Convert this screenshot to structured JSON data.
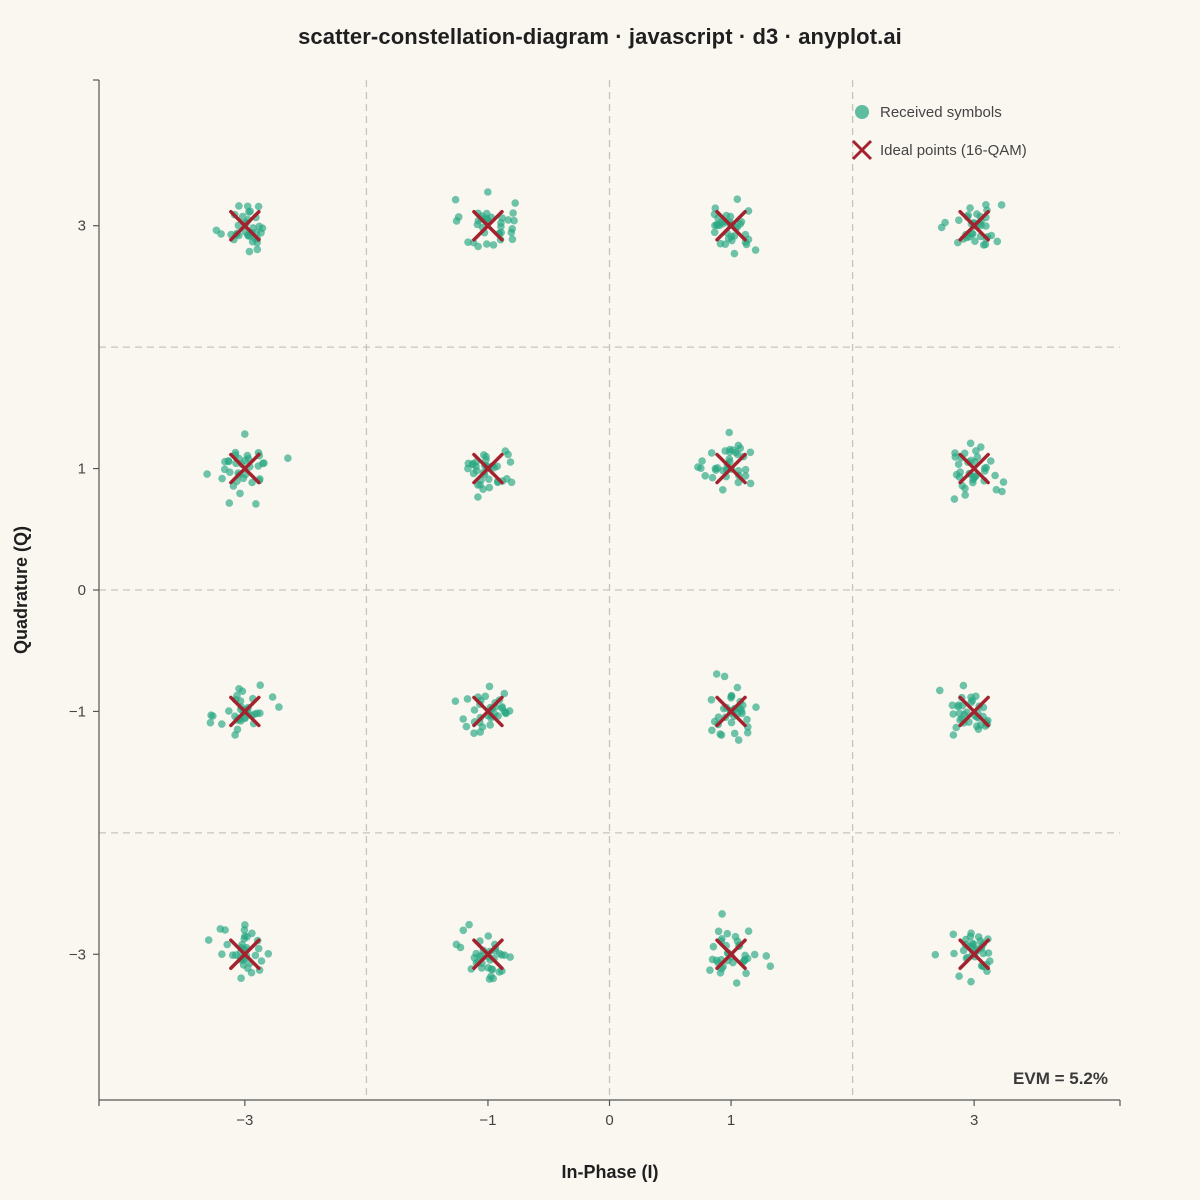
{
  "chart_data": {
    "type": "scatter",
    "title": "scatter-constellation-diagram · javascript · d3 · anyplot.ai",
    "xlabel": "In-Phase (I)",
    "ylabel": "Quadrature (Q)",
    "xlim": [
      -4.2,
      4.2
    ],
    "ylim": [
      -4.2,
      4.2
    ],
    "x_ticks": [
      {
        "value": -3,
        "label": "−3"
      },
      {
        "value": -1,
        "label": "−1"
      },
      {
        "value": 0,
        "label": "0"
      },
      {
        "value": 1,
        "label": "1"
      },
      {
        "value": 3,
        "label": "3"
      }
    ],
    "y_ticks": [
      {
        "value": 3,
        "label": "3"
      },
      {
        "value": 1,
        "label": "1"
      },
      {
        "value": 0,
        "label": "0"
      },
      {
        "value": -1,
        "label": "−1"
      },
      {
        "value": -3,
        "label": "−3"
      }
    ],
    "grid": {
      "dashed_lines_x": [
        -2,
        0,
        2
      ],
      "dashed_lines_y": [
        -2,
        0,
        2
      ]
    },
    "legend": {
      "position": "top-right",
      "entries": [
        {
          "label": "Received symbols",
          "marker": "circle",
          "color": "#2ba883"
        },
        {
          "label": "Ideal points (16-QAM)",
          "marker": "x",
          "color": "#a3222d"
        }
      ]
    },
    "annotation": "EVM = 5.2%",
    "ideal_points": [
      [
        -3,
        3
      ],
      [
        -1,
        3
      ],
      [
        1,
        3
      ],
      [
        3,
        3
      ],
      [
        -3,
        1
      ],
      [
        -1,
        1
      ],
      [
        1,
        1
      ],
      [
        3,
        1
      ],
      [
        -3,
        -1
      ],
      [
        -1,
        -1
      ],
      [
        1,
        -1
      ],
      [
        3,
        -1
      ],
      [
        -3,
        -3
      ],
      [
        -1,
        -3
      ],
      [
        1,
        -3
      ],
      [
        3,
        -3
      ]
    ],
    "received_points_per_symbol": 35,
    "received_noise_std": 0.11,
    "colors": {
      "received": "#2ba883",
      "ideal": "#a3222d",
      "grid": "#c9c4bb",
      "axis": "#555555",
      "background": "#faf7f1"
    }
  }
}
